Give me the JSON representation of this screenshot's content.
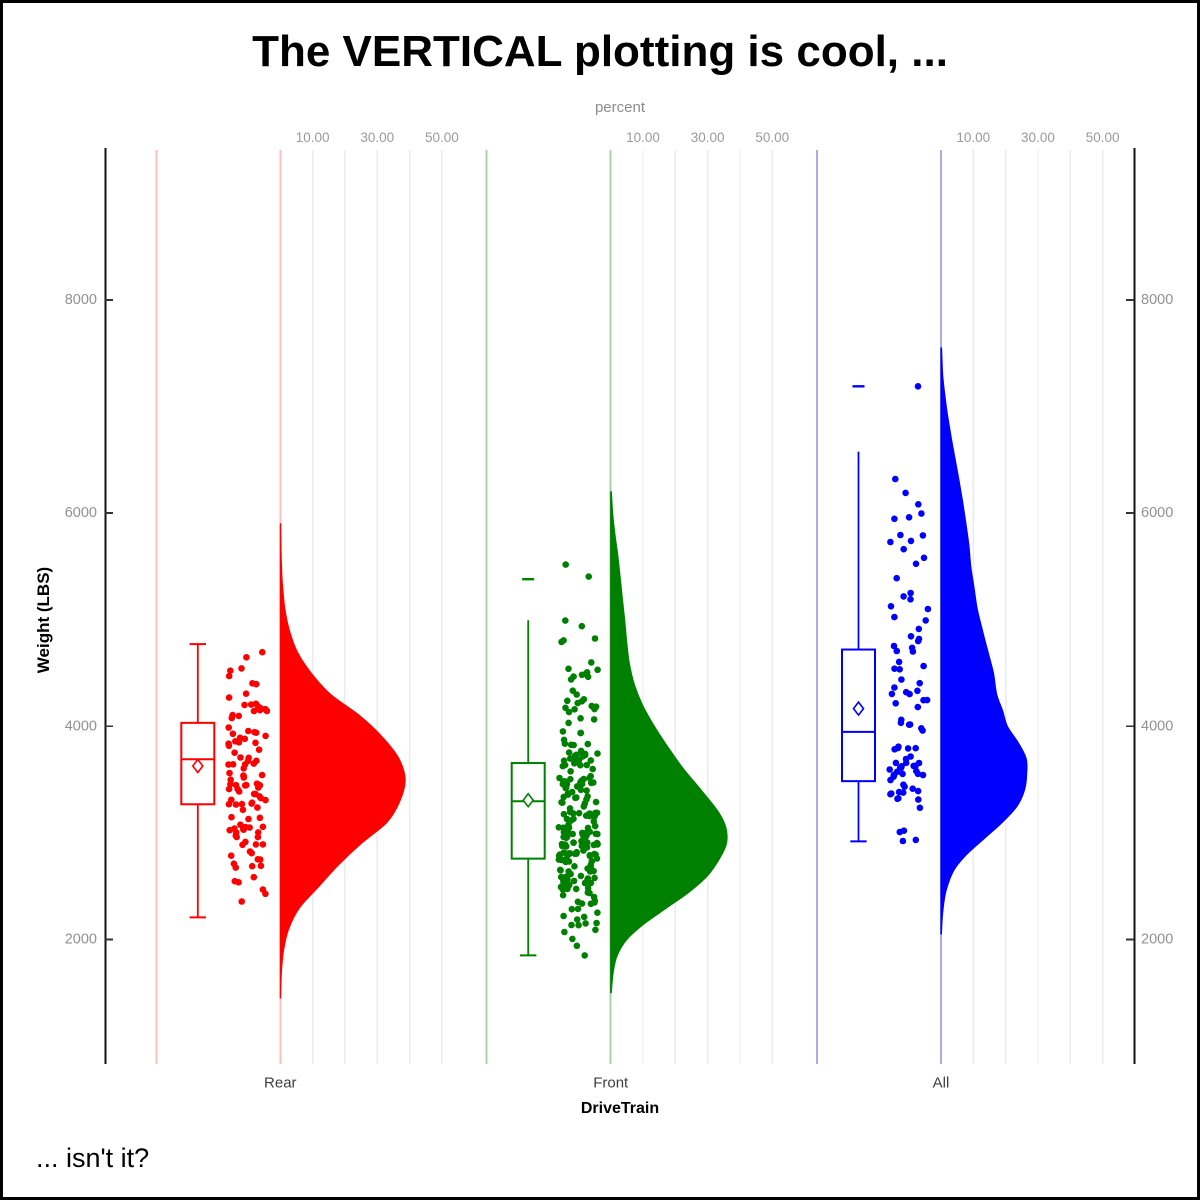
{
  "title": "The VERTICAL plotting is cool, ...",
  "footnote": "... isn't it?",
  "chart_data": {
    "type": "raincloud",
    "orientation": "vertical",
    "description": "Half-violin (density in percent) + box plot + jittered points of vehicle weight per drive-train group",
    "x_title": "DriveTrain",
    "y_title": "Weight (LBS)",
    "x_categories": [
      "Rear",
      "Front",
      "All"
    ],
    "y_axis": {
      "tick_values": [
        2000,
        4000,
        6000,
        8000
      ],
      "tick_labels": [
        "2000",
        "4000",
        "6000",
        "8000"
      ],
      "shown_on_both_sides": true,
      "approx_range_shown": [
        850,
        9350
      ]
    },
    "density_axis": {
      "title": "percent",
      "grid_values": [
        10,
        20,
        30,
        40,
        50
      ],
      "labeled_values": [
        10,
        30,
        50
      ],
      "labels": [
        "10.00",
        "30.00",
        "50.00"
      ]
    },
    "groups": [
      {
        "name": "Rear",
        "color": "#ff0000",
        "light_color": "#ffbebe",
        "box": {
          "whisker_low": 2207,
          "q1": 3268,
          "median": 3690,
          "mean": 3627,
          "q3": 4032,
          "whisker_high": 4771,
          "cap_low": true,
          "cap_high": true
        },
        "outliers": [],
        "violin_profile": [
          [
            1450,
            0.05
          ],
          [
            1700,
            0.35
          ],
          [
            1900,
            1.0
          ],
          [
            2100,
            2.6
          ],
          [
            2300,
            6.0
          ],
          [
            2500,
            12.0
          ],
          [
            2700,
            18.0
          ],
          [
            2900,
            25.0
          ],
          [
            3100,
            33.0
          ],
          [
            3300,
            37.0
          ],
          [
            3500,
            38.6
          ],
          [
            3700,
            36.6
          ],
          [
            3900,
            31.5
          ],
          [
            4100,
            24.5
          ],
          [
            4300,
            15.5
          ],
          [
            4500,
            9.5
          ],
          [
            4700,
            5.2
          ],
          [
            4900,
            2.8
          ],
          [
            5100,
            1.4
          ],
          [
            5350,
            0.6
          ],
          [
            5600,
            0.25
          ],
          [
            5900,
            0.08
          ]
        ],
        "jitter": {
          "count": 110,
          "weight_min": 2180,
          "weight_max": 4780,
          "seed": 101
        },
        "extra_points": []
      },
      {
        "name": "Front",
        "color": "#008000",
        "light_color": "#a8d3a8",
        "box": {
          "whisker_low": 1850,
          "q1": 2758,
          "median": 3296,
          "mean": 3306,
          "q3": 3655,
          "whisker_high": 4995,
          "cap_low": true,
          "cap_high": false
        },
        "outliers": [
          5380
        ],
        "violin_profile": [
          [
            1500,
            0.15
          ],
          [
            1700,
            0.8
          ],
          [
            1850,
            2.0
          ],
          [
            2000,
            5.0
          ],
          [
            2150,
            10.5
          ],
          [
            2300,
            17.5
          ],
          [
            2450,
            24.5
          ],
          [
            2600,
            30.0
          ],
          [
            2750,
            33.5
          ],
          [
            2900,
            35.8
          ],
          [
            3050,
            35.6
          ],
          [
            3200,
            33.2
          ],
          [
            3400,
            28.0
          ],
          [
            3600,
            22.5
          ],
          [
            3800,
            17.8
          ],
          [
            4000,
            13.5
          ],
          [
            4200,
            9.8
          ],
          [
            4400,
            7.2
          ],
          [
            4600,
            5.7
          ],
          [
            4800,
            4.9
          ],
          [
            5000,
            4.3
          ],
          [
            5200,
            3.6
          ],
          [
            5400,
            2.9
          ],
          [
            5600,
            2.2
          ],
          [
            5800,
            1.3
          ],
          [
            6000,
            0.6
          ],
          [
            6200,
            0.2
          ]
        ],
        "jitter": {
          "count": 223,
          "weight_min": 1900,
          "weight_max": 5080,
          "seed": 202
        },
        "extra_points": [
          [
            1850,
            -26
          ],
          [
            5404,
            -22
          ],
          [
            5517,
            -45
          ]
        ]
      },
      {
        "name": "All",
        "color": "#0000ff",
        "light_color": "#a9ade2",
        "box": {
          "whisker_low": 2920,
          "q1": 3485,
          "median": 3947,
          "mean": 4166,
          "q3": 4720,
          "whisker_high": 6577,
          "cap_low": true,
          "cap_high": false
        },
        "outliers": [
          7190
        ],
        "violin_profile": [
          [
            2050,
            0.1
          ],
          [
            2250,
            0.5
          ],
          [
            2450,
            1.5
          ],
          [
            2650,
            4.0
          ],
          [
            2800,
            8.0
          ],
          [
            2950,
            13.5
          ],
          [
            3100,
            19.0
          ],
          [
            3250,
            23.5
          ],
          [
            3400,
            25.8
          ],
          [
            3550,
            26.5
          ],
          [
            3700,
            26.3
          ],
          [
            3850,
            23.8
          ],
          [
            4000,
            20.5
          ],
          [
            4150,
            19.0
          ],
          [
            4300,
            17.2
          ],
          [
            4500,
            16.2
          ],
          [
            4700,
            14.5
          ],
          [
            4900,
            12.8
          ],
          [
            5100,
            11.2
          ],
          [
            5300,
            10.2
          ],
          [
            5500,
            9.2
          ],
          [
            5700,
            8.6
          ],
          [
            5900,
            7.7
          ],
          [
            6100,
            6.7
          ],
          [
            6300,
            5.6
          ],
          [
            6500,
            4.4
          ],
          [
            6700,
            3.2
          ],
          [
            6900,
            2.1
          ],
          [
            7100,
            1.2
          ],
          [
            7300,
            0.5
          ],
          [
            7550,
            0.15
          ]
        ],
        "jitter": {
          "count": 91,
          "weight_min": 2920,
          "weight_max": 6450,
          "seed": 303
        },
        "extra_points": [
          [
            7190,
            -23
          ]
        ]
      }
    ]
  }
}
